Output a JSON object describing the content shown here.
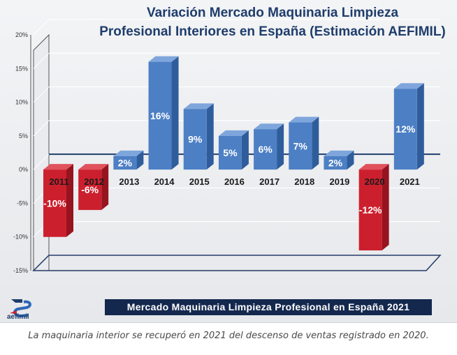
{
  "chart_data": {
    "type": "bar",
    "title": "Variación Mercado Maquinaria Limpieza",
    "subtitle": "Profesional Interiores en España (Estimación AEFIMIL)",
    "categories": [
      "2011",
      "2012",
      "2013",
      "2014",
      "2015",
      "2016",
      "2017",
      "2018",
      "2019",
      "2020",
      "2021"
    ],
    "values": [
      -10,
      -6,
      2,
      16,
      9,
      5,
      6,
      7,
      2,
      -12,
      12
    ],
    "data_labels": [
      "-10%",
      "-6%",
      "2%",
      "16%",
      "9%",
      "5%",
      "6%",
      "7%",
      "2%",
      "-12%",
      "12%"
    ],
    "y_ticks": [
      "20%",
      "15%",
      "10%",
      "5%",
      "0%",
      "-5%",
      "-10%",
      "-15%"
    ],
    "ylim": [
      -15,
      20
    ],
    "grid": true,
    "colors": {
      "positive": "#4d7fc4",
      "negative": "#cc1f2d"
    }
  },
  "footer_banner": "Mercado Maquinaria Limpieza Profesional en España 2021",
  "logo_text": "aefimil",
  "caption": "La maquinaria interior se recuperó en 2021 del descenso de ventas registrado en 2020."
}
